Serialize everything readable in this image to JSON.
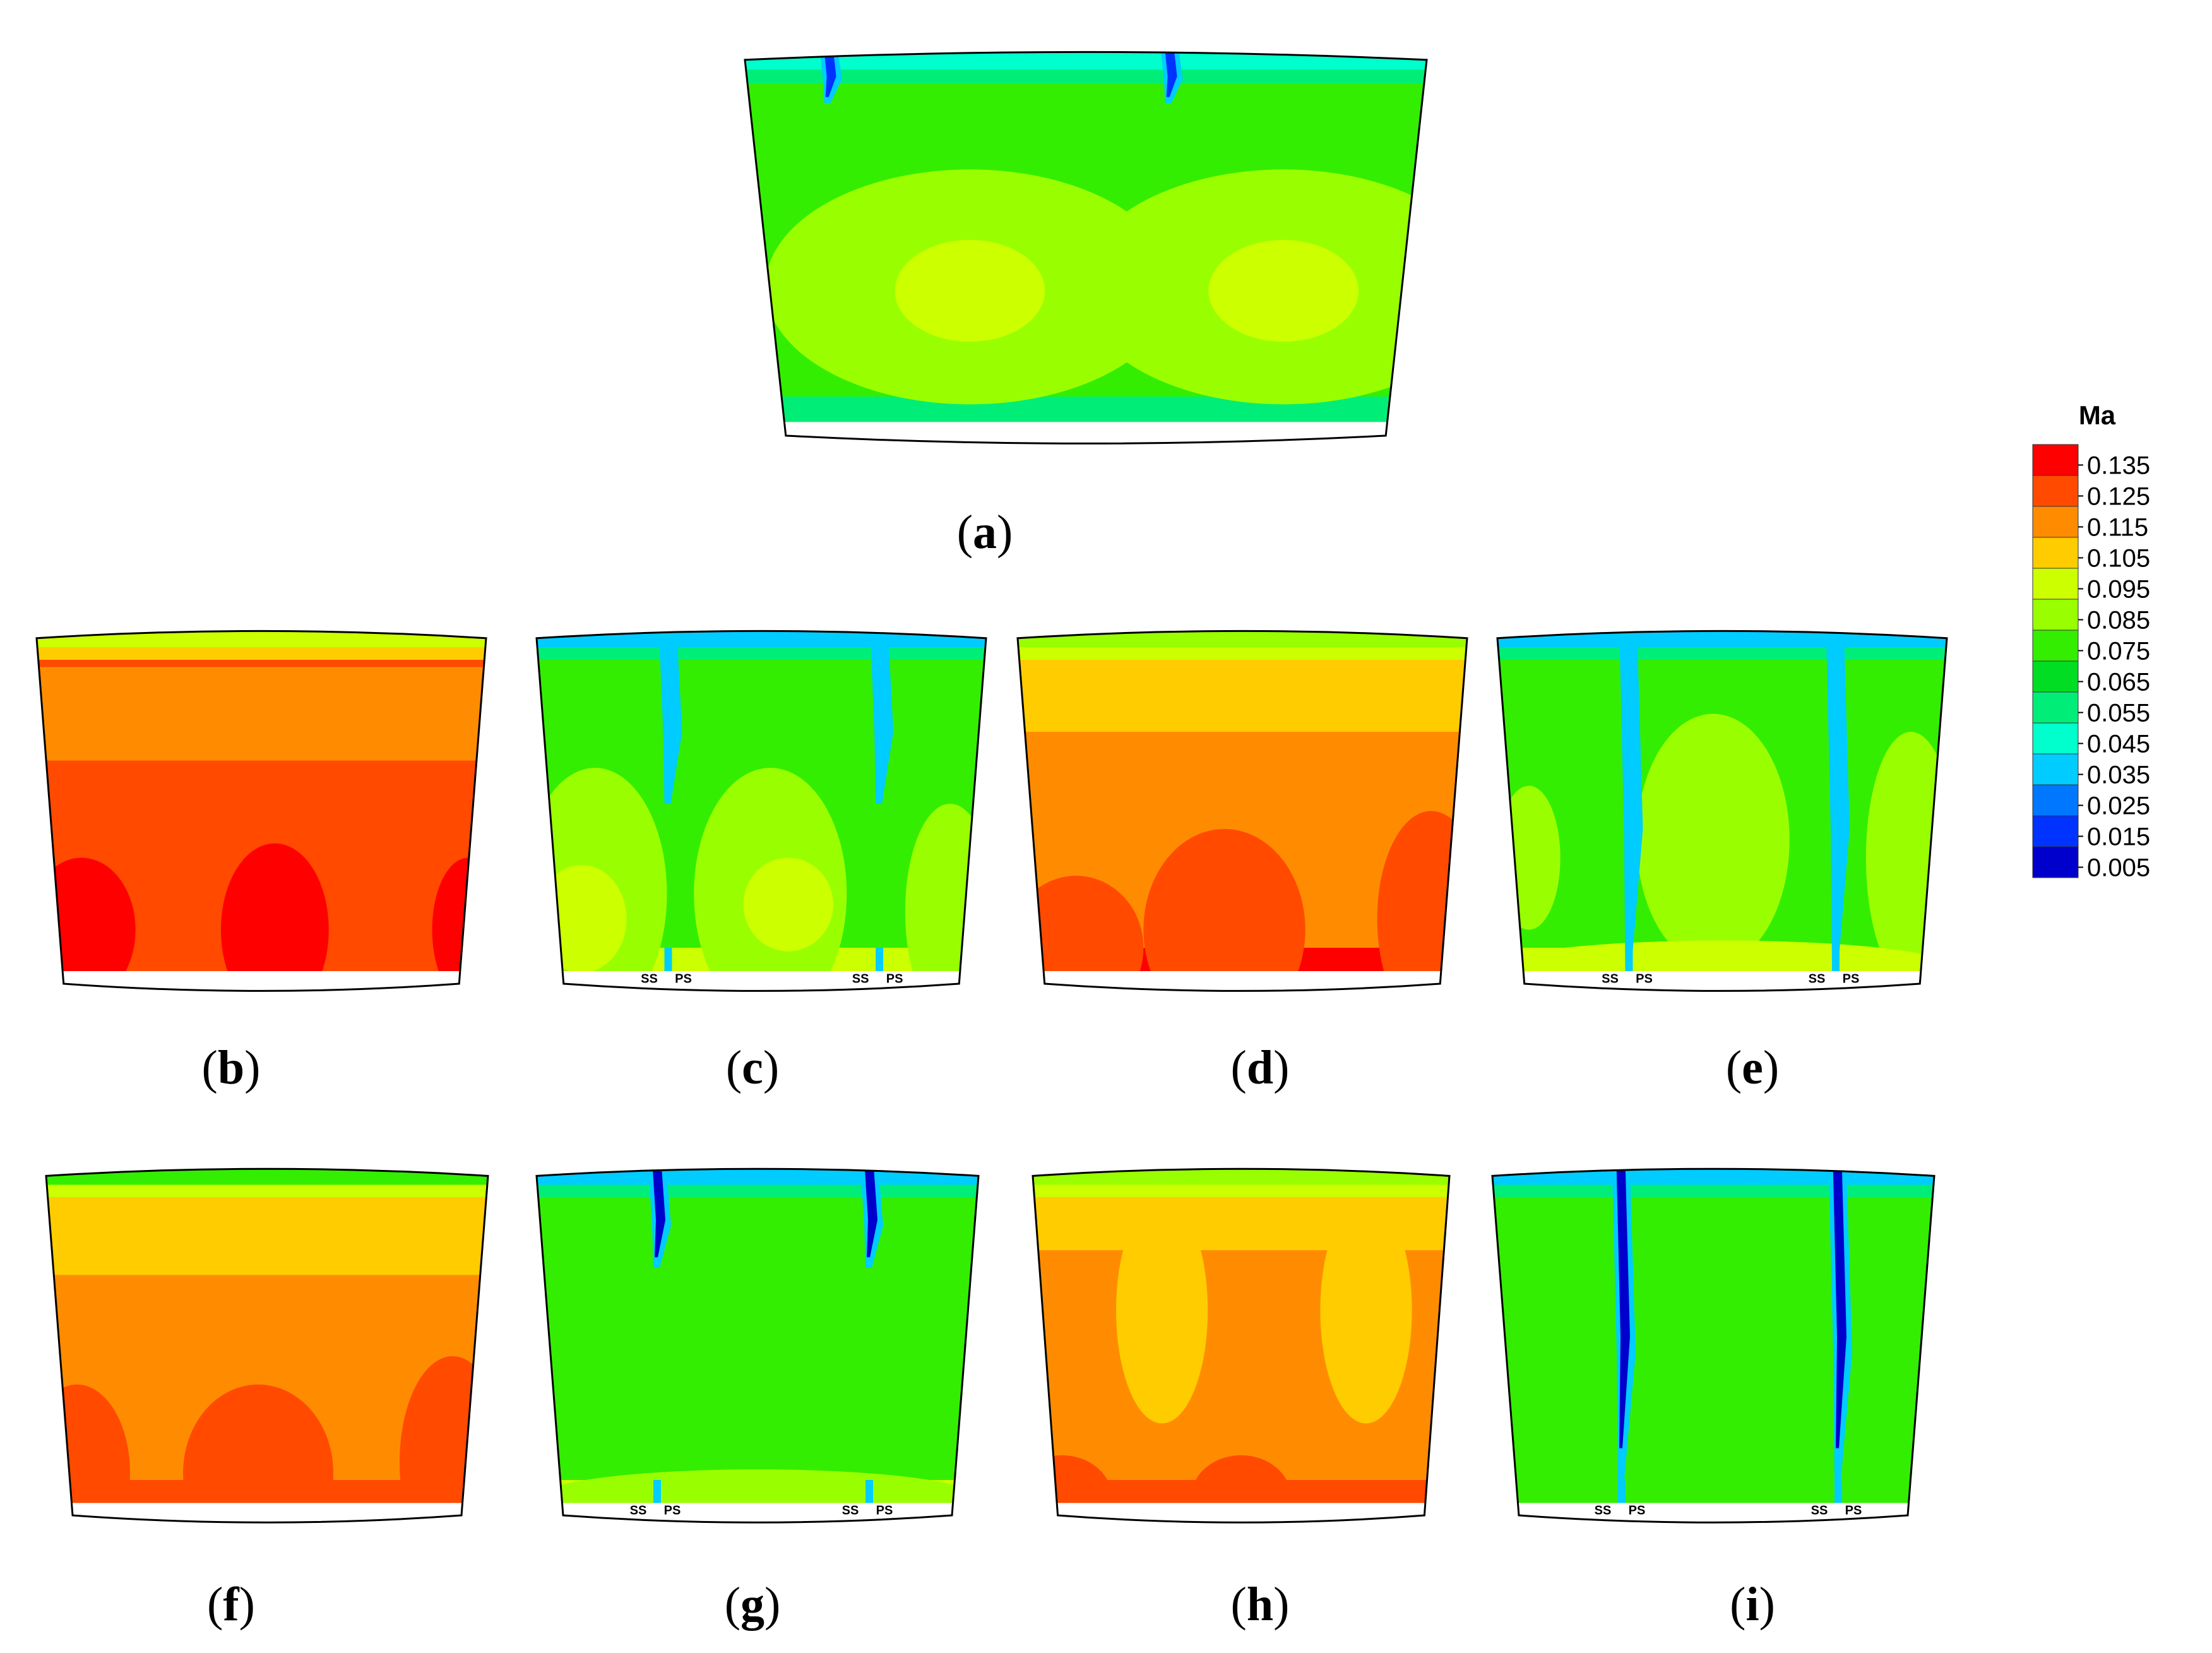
{
  "chart_data": {
    "type": "heatmap",
    "variable": "Ma",
    "colorbar": {
      "title": "Ma",
      "ticks": [
        "0.135",
        "0.125",
        "0.115",
        "0.105",
        "0.095",
        "0.085",
        "0.075",
        "0.065",
        "0.055",
        "0.045",
        "0.035",
        "0.025",
        "0.015",
        "0.005"
      ],
      "colors": [
        "#ff0000",
        "#ff4a00",
        "#ff8c00",
        "#ffcc00",
        "#ccff00",
        "#99ff00",
        "#33ee00",
        "#00dd22",
        "#00ee77",
        "#00ffcc",
        "#00ccff",
        "#0077ff",
        "#0033ff",
        "#0000cc"
      ]
    },
    "panels": [
      {
        "id": "a",
        "label": "a",
        "background": "#33ee00",
        "top_band": [
          "#00ffcc",
          "#00ee77"
        ],
        "bottom_band": "#00ee77",
        "side_markers": [],
        "wakes": [
          {
            "pos": 0.12,
            "top_color": "#0033ff",
            "extent": 0.15
          },
          {
            "pos": 0.62,
            "top_color": "#0033ff",
            "extent": 0.15
          }
        ],
        "zones": [
          {
            "color": "#99ff00",
            "cx": 0.33,
            "cy": 0.62,
            "rx": 0.3,
            "ry": 0.3
          },
          {
            "color": "#99ff00",
            "cx": 0.79,
            "cy": 0.62,
            "rx": 0.3,
            "ry": 0.3
          },
          {
            "color": "#ccff00",
            "cx": 0.33,
            "cy": 0.63,
            "rx": 0.11,
            "ry": 0.13
          },
          {
            "color": "#ccff00",
            "cx": 0.79,
            "cy": 0.63,
            "rx": 0.11,
            "ry": 0.13
          }
        ]
      },
      {
        "id": "b",
        "label": "b",
        "background": "#ff4a00",
        "top_band": [
          "#ccff00",
          "#ffcc00"
        ],
        "bottom_band": "#ff4a00",
        "side_markers": [],
        "wakes": [],
        "zones": [
          {
            "color": "#ff8c00",
            "band": [
              0.12,
              0.38
            ]
          },
          {
            "color": "#ff0000",
            "cx": 0.1,
            "cy": 0.85,
            "rx": 0.12,
            "ry": 0.2
          },
          {
            "color": "#ff0000",
            "cx": 0.53,
            "cy": 0.85,
            "rx": 0.12,
            "ry": 0.24
          },
          {
            "color": "#ff0000",
            "cx": 0.96,
            "cy": 0.85,
            "rx": 0.08,
            "ry": 0.2
          }
        ]
      },
      {
        "id": "c",
        "label": "c",
        "background": "#33ee00",
        "top_band": [
          "#00ccff",
          "#00ee77"
        ],
        "bottom_band": "#ccff00",
        "side_markers": [
          "SS",
          "PS",
          "SS",
          "PS"
        ],
        "wakes": [
          {
            "pos": 0.29,
            "top_color": "#00ccff",
            "extent": 0.5
          },
          {
            "pos": 0.76,
            "top_color": "#00ccff",
            "extent": 0.5
          }
        ],
        "zones": [
          {
            "color": "#99ff00",
            "cx": 0.13,
            "cy": 0.75,
            "rx": 0.16,
            "ry": 0.35
          },
          {
            "color": "#99ff00",
            "cx": 0.52,
            "cy": 0.75,
            "rx": 0.17,
            "ry": 0.35
          },
          {
            "color": "#99ff00",
            "cx": 0.92,
            "cy": 0.8,
            "rx": 0.1,
            "ry": 0.3
          },
          {
            "color": "#ccff00",
            "cx": 0.1,
            "cy": 0.82,
            "rx": 0.1,
            "ry": 0.15
          },
          {
            "color": "#ccff00",
            "cx": 0.56,
            "cy": 0.78,
            "rx": 0.1,
            "ry": 0.13
          }
        ]
      },
      {
        "id": "d",
        "label": "d",
        "background": "#ff8c00",
        "top_band": [
          "#99ff00",
          "#ccff00"
        ],
        "bottom_band": "#ff0000",
        "side_markers": [],
        "wakes": [],
        "zones": [
          {
            "color": "#ffcc00",
            "band": [
              0.07,
              0.3
            ]
          },
          {
            "color": "#ff4a00",
            "cx": 0.13,
            "cy": 0.9,
            "rx": 0.15,
            "ry": 0.2
          },
          {
            "color": "#ff4a00",
            "cx": 0.46,
            "cy": 0.85,
            "rx": 0.18,
            "ry": 0.28
          },
          {
            "color": "#ff4a00",
            "cx": 0.92,
            "cy": 0.82,
            "rx": 0.12,
            "ry": 0.3
          }
        ]
      },
      {
        "id": "e",
        "label": "e",
        "background": "#33ee00",
        "top_band": [
          "#00ccff",
          "#00ee77"
        ],
        "bottom_band": "#ccff00",
        "side_markers": [
          "SS",
          "PS",
          "SS",
          "PS"
        ],
        "wakes": [
          {
            "pos": 0.29,
            "top_color": "#00ccff",
            "extent": 0.95
          },
          {
            "pos": 0.75,
            "top_color": "#00ccff",
            "extent": 0.95
          }
        ],
        "zones": [
          {
            "color": "#99ff00",
            "cx": 0.48,
            "cy": 0.6,
            "rx": 0.17,
            "ry": 0.35
          },
          {
            "color": "#99ff00",
            "cx": 0.92,
            "cy": 0.65,
            "rx": 0.1,
            "ry": 0.35
          },
          {
            "color": "#99ff00",
            "cx": 0.07,
            "cy": 0.65,
            "rx": 0.07,
            "ry": 0.2
          },
          {
            "color": "#ccff00",
            "cx": 0.5,
            "cy": 0.95,
            "rx": 0.5,
            "ry": 0.07
          }
        ]
      },
      {
        "id": "f",
        "label": "f",
        "background": "#ff8c00",
        "top_band": [
          "#33ee00",
          "#ccff00"
        ],
        "bottom_band": "#ff4a00",
        "side_markers": [],
        "wakes": [],
        "zones": [
          {
            "color": "#ffcc00",
            "band": [
              0.09,
              0.32
            ]
          },
          {
            "color": "#ff4a00",
            "cx": 0.07,
            "cy": 0.88,
            "rx": 0.12,
            "ry": 0.25
          },
          {
            "color": "#ff4a00",
            "cx": 0.48,
            "cy": 0.88,
            "rx": 0.17,
            "ry": 0.25
          },
          {
            "color": "#ff4a00",
            "cx": 0.92,
            "cy": 0.85,
            "rx": 0.12,
            "ry": 0.3
          }
        ]
      },
      {
        "id": "g",
        "label": "g",
        "background": "#33ee00",
        "top_band": [
          "#00ccff",
          "#00ee77"
        ],
        "bottom_band": "#ccff00",
        "side_markers": [
          "SS",
          "PS",
          "SS",
          "PS"
        ],
        "wakes": [
          {
            "pos": 0.27,
            "top_color": "#0000cc",
            "extent": 0.3
          },
          {
            "pos": 0.75,
            "top_color": "#0000cc",
            "extent": 0.3
          }
        ],
        "zones": [
          {
            "color": "#99ff00",
            "cx": 0.5,
            "cy": 0.95,
            "rx": 0.5,
            "ry": 0.08
          }
        ]
      },
      {
        "id": "h",
        "label": "h",
        "background": "#ff8c00",
        "top_band": [
          "#99ff00",
          "#ccff00"
        ],
        "bottom_band": "#ff4a00",
        "side_markers": [],
        "wakes": [],
        "zones": [
          {
            "color": "#ffcc00",
            "band": [
              0.07,
              0.25
            ]
          },
          {
            "color": "#ffcc00",
            "cx": 0.31,
            "cy": 0.42,
            "rx": 0.11,
            "ry": 0.32
          },
          {
            "color": "#ffcc00",
            "cx": 0.8,
            "cy": 0.42,
            "rx": 0.11,
            "ry": 0.32
          },
          {
            "color": "#ff4a00",
            "cx": 0.07,
            "cy": 0.95,
            "rx": 0.12,
            "ry": 0.12
          },
          {
            "color": "#ff4a00",
            "cx": 0.5,
            "cy": 0.95,
            "rx": 0.12,
            "ry": 0.12
          }
        ]
      },
      {
        "id": "i",
        "label": "i",
        "background": "#33ee00",
        "top_band": [
          "#00ccff",
          "#00ee77"
        ],
        "bottom_band": "#33ee00",
        "side_markers": [
          "SS",
          "PS",
          "SS",
          "PS"
        ],
        "wakes": [
          {
            "pos": 0.29,
            "top_color": "#0000cc",
            "extent": 0.9
          },
          {
            "pos": 0.78,
            "top_color": "#0000cc",
            "extent": 0.9
          }
        ],
        "zones": []
      }
    ]
  }
}
